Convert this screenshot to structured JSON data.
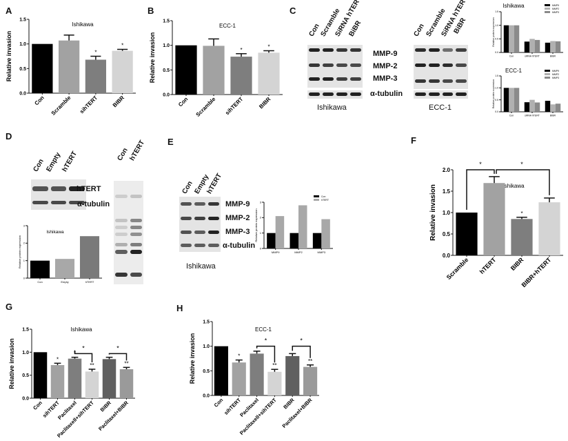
{
  "panel_labels": [
    "A",
    "B",
    "C",
    "D",
    "E",
    "F",
    "G",
    "H"
  ],
  "blots": {
    "C_ishikawa": {
      "lanes": [
        "Con",
        "Scramble",
        "SiRNA hTERT",
        "BiBR"
      ],
      "proteins": [
        "MMP-9",
        "MMP-2",
        "MMP-3",
        "α-tubulin"
      ],
      "caption": "Ishikawa"
    },
    "C_ecc1": {
      "lanes": [
        "Con",
        "Scramble",
        "SiRNA hTERT",
        "BiBR"
      ],
      "caption": "ECC-1"
    },
    "D": {
      "lanes": [
        "Con",
        "Empty",
        "hTERT"
      ],
      "proteins": [
        "hTERT",
        "α-tubulin"
      ]
    },
    "D_gel": {
      "lanes": [
        "Con",
        "hTERT"
      ]
    },
    "E": {
      "lanes": [
        "Con",
        "Empty",
        "hTERT"
      ],
      "proteins": [
        "MMP-9",
        "MMP-2",
        "MMP-3",
        "α-tubulin"
      ],
      "caption": "Ishikawa"
    }
  },
  "chart_data": [
    {
      "id": "A",
      "type": "bar",
      "title": "Ishikawa",
      "ylabel": "Relative invasion",
      "ylim": [
        0,
        1.5
      ],
      "ytick_step": 0.5,
      "tick_decimals": 1,
      "categories": [
        "Con",
        "Scramble",
        "sihTERT",
        "BIBR"
      ],
      "values": [
        1.0,
        1.07,
        0.68,
        0.86
      ],
      "errors": [
        0,
        0.11,
        0.07,
        0.03
      ],
      "colors": [
        "#000000",
        "#a2a2a2",
        "#7e7e7e",
        "#d4d4d4"
      ],
      "significance": [
        "",
        "",
        "*",
        "*"
      ],
      "brackets": []
    },
    {
      "id": "B",
      "type": "bar",
      "title": "ECC-1",
      "ylabel": "Relative invasion",
      "ylim": [
        0,
        1.5
      ],
      "ytick_step": 0.5,
      "tick_decimals": 1,
      "categories": [
        "Con",
        "Scramble",
        "sihTERT",
        "BIBR"
      ],
      "values": [
        1.0,
        0.99,
        0.77,
        0.85
      ],
      "errors": [
        0,
        0.14,
        0.06,
        0.04
      ],
      "colors": [
        "#000000",
        "#a2a2a2",
        "#7e7e7e",
        "#d4d4d4"
      ],
      "significance": [
        "",
        "",
        "*",
        "*"
      ],
      "brackets": []
    },
    {
      "id": "C1",
      "type": "bar",
      "title": "Ishikawa",
      "ylabel": "Relative protein expression",
      "ylim": [
        0,
        1.5
      ],
      "ytick_step": 0.5,
      "tick_decimals": 1,
      "categories": [
        "Con",
        "siRNA hTERT",
        "BIBR"
      ],
      "series": [
        {
          "name": "MMP9",
          "values": [
            1.0,
            0.4,
            0.36
          ]
        },
        {
          "name": "MMP2",
          "values": [
            1.0,
            0.5,
            0.42
          ]
        },
        {
          "name": "MMP3",
          "values": [
            1.0,
            0.46,
            0.41
          ]
        }
      ],
      "colors": [
        "#000000",
        "#b0b0b0",
        "#8a8a8a"
      ],
      "legend": "top-right"
    },
    {
      "id": "C2",
      "type": "bar",
      "title": "ECC-1",
      "ylabel": "Relative protein expression",
      "ylim": [
        0,
        1.5
      ],
      "ytick_step": 0.5,
      "tick_decimals": 1,
      "categories": [
        "Con",
        "siRNA hTERT",
        "BIBR"
      ],
      "series": [
        {
          "name": "MMP9",
          "values": [
            1.0,
            0.4,
            0.46
          ]
        },
        {
          "name": "MMP2",
          "values": [
            1.0,
            0.5,
            0.31
          ]
        },
        {
          "name": "MMP3",
          "values": [
            1.0,
            0.39,
            0.34
          ]
        }
      ],
      "colors": [
        "#000000",
        "#b0b0b0",
        "#8a8a8a"
      ],
      "legend": "top-right"
    },
    {
      "id": "D",
      "type": "bar",
      "title": "Ishikawa",
      "ylabel": "Relative protein expression",
      "ylim": [
        0,
        3
      ],
      "ytick_step": 1,
      "tick_decimals": 0,
      "categories": [
        "Con",
        "Empty",
        "hTERT"
      ],
      "values": [
        1.0,
        1.1,
        2.4
      ],
      "colors": [
        "#000000",
        "#a8a8a8",
        "#7a7a7a"
      ]
    },
    {
      "id": "E",
      "type": "bar",
      "title": "",
      "ylabel": "Relative protein expression",
      "ylim": [
        0,
        3
      ],
      "ytick_step": 1,
      "tick_decimals": 0,
      "categories": [
        "MMP9",
        "MMP2",
        "MMP3"
      ],
      "series": [
        {
          "name": "Con",
          "values": [
            1.0,
            1.0,
            1.0
          ]
        },
        {
          "name": "hTERT",
          "values": [
            2.1,
            2.8,
            1.9
          ]
        }
      ],
      "colors": [
        "#000000",
        "#a8a8a8"
      ],
      "legend": "top-right"
    },
    {
      "id": "F",
      "type": "bar",
      "title": "Ishikawa",
      "ylabel": "Relative invasion",
      "ylim": [
        0,
        2
      ],
      "ytick_step": 0.5,
      "tick_decimals": 1,
      "categories": [
        "Scramble",
        "hTERT",
        "BIBR",
        "BIBR+hTERT"
      ],
      "values": [
        1.0,
        1.69,
        0.85,
        1.24
      ],
      "errors": [
        0,
        0.15,
        0.04,
        0.1
      ],
      "colors": [
        "#000000",
        "#a2a2a2",
        "#7e7e7e",
        "#d4d4d4"
      ],
      "significance": [
        "",
        "",
        "*",
        ""
      ],
      "brackets": [
        {
          "from": 0,
          "to": 1,
          "level": 2.0,
          "label": "*"
        },
        {
          "from": 1,
          "to": 3,
          "level": 2.0,
          "label": "*"
        }
      ]
    },
    {
      "id": "G",
      "type": "bar",
      "title": "Ishikawa",
      "ylabel": "Relative invasion",
      "ylim": [
        0,
        1.5
      ],
      "ytick_step": 0.5,
      "tick_decimals": 1,
      "categories": [
        "Con",
        "sihTERT",
        "Paclitaxel",
        "Paclitaxell+sihTERT",
        "BIBR",
        "Paclitaxel+BIBR"
      ],
      "values": [
        1.0,
        0.72,
        0.86,
        0.58,
        0.85,
        0.63
      ],
      "errors": [
        0,
        0.04,
        0.03,
        0.05,
        0.04,
        0.04
      ],
      "colors": [
        "#000000",
        "#a2a2a2",
        "#7e7e7e",
        "#d4d4d4",
        "#606060",
        "#9a9a9a"
      ],
      "significance": [
        "",
        "*",
        "*",
        "**",
        "",
        "**"
      ],
      "brackets": [
        {
          "from": 2,
          "to": 3,
          "level": 0.97,
          "label": "*"
        },
        {
          "from": 4,
          "to": 5,
          "level": 0.97,
          "label": "*"
        }
      ]
    },
    {
      "id": "H",
      "type": "bar",
      "title": "ECC-1",
      "ylabel": "Relative invasion",
      "ylim": [
        0,
        1.5
      ],
      "ytick_step": 0.5,
      "tick_decimals": 1,
      "categories": [
        "Con",
        "sihTERT",
        "Paclitaxel",
        "Paclitaxell+sihTERT",
        "BIBR",
        "Paclitaxel+BIBR"
      ],
      "values": [
        1.0,
        0.67,
        0.85,
        0.48,
        0.8,
        0.58
      ],
      "errors": [
        0,
        0.05,
        0.05,
        0.05,
        0.05,
        0.04
      ],
      "colors": [
        "#000000",
        "#a2a2a2",
        "#7e7e7e",
        "#d4d4d4",
        "#606060",
        "#9a9a9a"
      ],
      "significance": [
        "",
        "*",
        "",
        "**",
        "",
        "**"
      ],
      "brackets": [
        {
          "from": 2,
          "to": 3,
          "level": 1.0,
          "label": "*"
        },
        {
          "from": 4,
          "to": 5,
          "level": 1.0,
          "label": "*"
        }
      ]
    }
  ]
}
